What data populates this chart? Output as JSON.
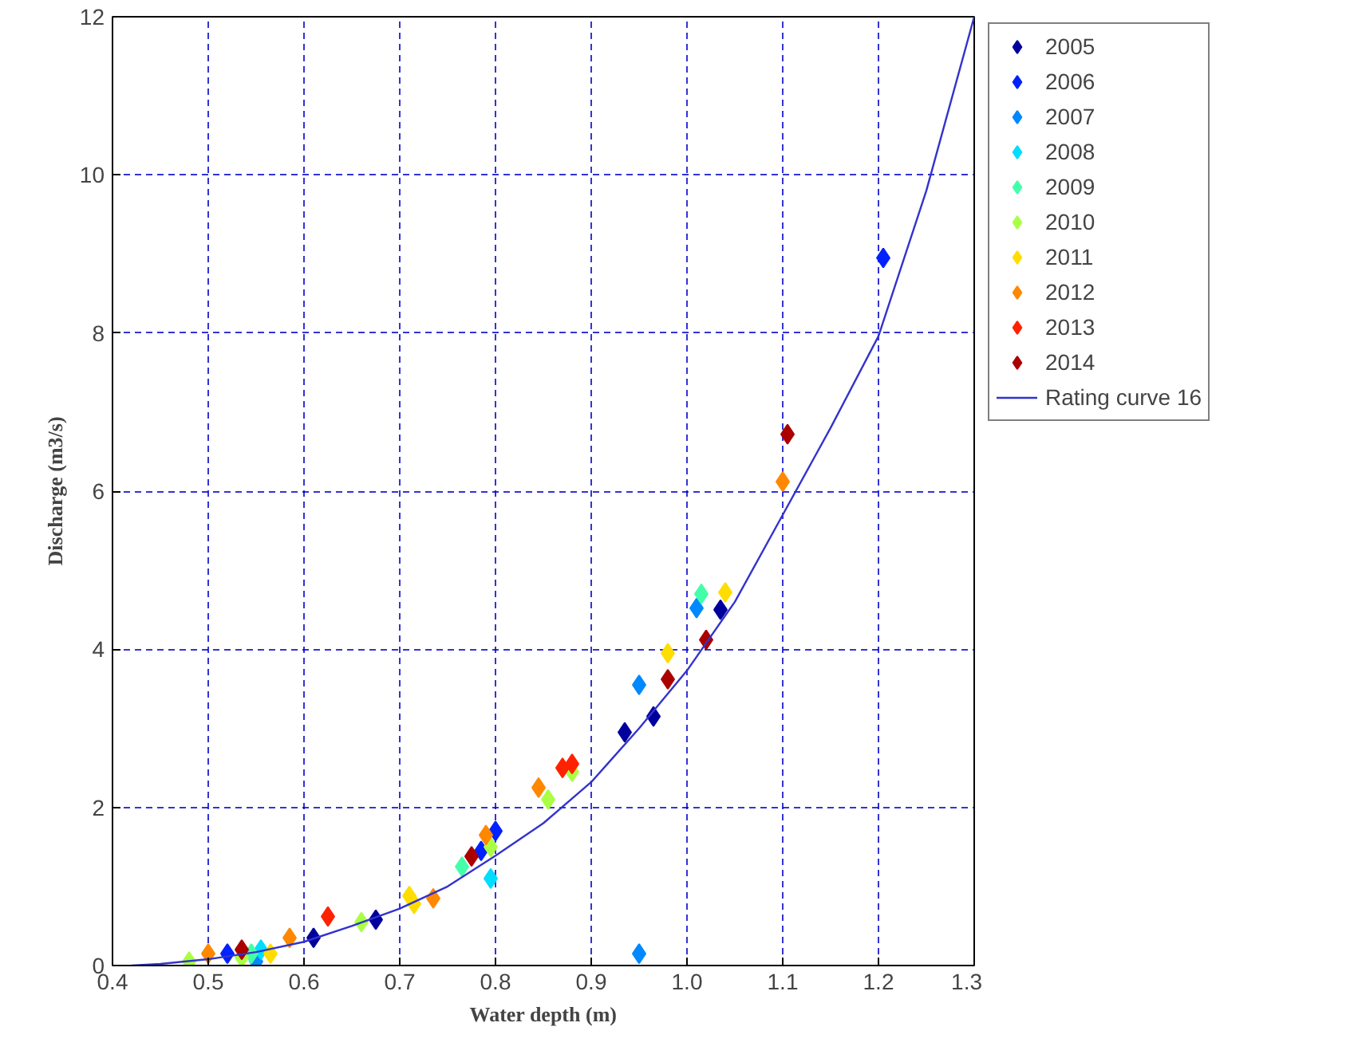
{
  "chart_data": {
    "type": "scatter",
    "xlabel": "Water depth (m)",
    "ylabel": "Discharge (m3/s)",
    "xlim": [
      0.4,
      1.3
    ],
    "ylim": [
      0,
      12
    ],
    "xticks": [
      0.4,
      0.5,
      0.6,
      0.7,
      0.8,
      0.9,
      {
        "value": 1,
        "label": "1.0"
      },
      1.1,
      1.2,
      1.3
    ],
    "yticks": [
      0,
      2,
      4,
      6,
      8,
      10,
      12
    ],
    "grid": true,
    "legend": "right",
    "marker": "diamond",
    "series": [
      {
        "name": "2005",
        "color": "#00009c",
        "x": [
          0.61,
          0.675,
          0.935,
          0.965,
          1.035
        ],
        "values": [
          0.35,
          0.58,
          2.95,
          3.15,
          4.5
        ]
      },
      {
        "name": "2006",
        "color": "#0022ff",
        "x": [
          0.52,
          0.785,
          0.8,
          1.205
        ],
        "values": [
          0.15,
          1.45,
          1.7,
          8.95
        ]
      },
      {
        "name": "2007",
        "color": "#0088ff",
        "x": [
          0.55,
          0.95,
          0.95,
          1.01
        ],
        "values": [
          0.05,
          0.15,
          3.55,
          4.52
        ]
      },
      {
        "name": "2008",
        "color": "#00ddff",
        "x": [
          0.555,
          0.795
        ],
        "values": [
          0.2,
          1.1
        ]
      },
      {
        "name": "2009",
        "color": "#44ffaa",
        "x": [
          0.545,
          0.765,
          1.015
        ],
        "values": [
          0.15,
          1.25,
          4.7
        ]
      },
      {
        "name": "2010",
        "color": "#aaff44",
        "x": [
          0.48,
          0.535,
          0.66,
          0.795,
          0.855,
          0.88
        ],
        "values": [
          0.05,
          0.1,
          0.55,
          1.5,
          2.1,
          2.45
        ]
      },
      {
        "name": "2011",
        "color": "#ffdd00",
        "x": [
          0.565,
          0.71,
          0.715,
          0.98,
          1.04
        ],
        "values": [
          0.15,
          0.88,
          0.78,
          3.95,
          4.72
        ]
      },
      {
        "name": "2012",
        "color": "#ff8800",
        "x": [
          0.5,
          0.585,
          0.735,
          0.79,
          0.845,
          1.1
        ],
        "values": [
          0.15,
          0.35,
          0.85,
          1.65,
          2.25,
          6.12
        ]
      },
      {
        "name": "2013",
        "color": "#ff2200",
        "x": [
          0.625,
          0.87,
          0.88
        ],
        "values": [
          0.62,
          2.5,
          2.55
        ]
      },
      {
        "name": "2014",
        "color": "#aa0000",
        "x": [
          0.535,
          0.775,
          0.98,
          1.02,
          1.105
        ],
        "values": [
          0.2,
          1.38,
          3.62,
          4.12,
          6.72
        ]
      },
      {
        "name": "Rating curve 16",
        "type": "line",
        "color": "#3333cc",
        "marker": "none",
        "line_style": "solid",
        "x": [
          0.42,
          0.45,
          0.5,
          0.55,
          0.6,
          0.65,
          0.7,
          0.75,
          0.8,
          0.85,
          0.9,
          0.95,
          1.0,
          1.05,
          1.1,
          1.15,
          1.2,
          1.25,
          1.3
        ],
        "values": [
          0,
          0.02,
          0.08,
          0.17,
          0.3,
          0.5,
          0.72,
          1.0,
          1.39,
          1.8,
          2.32,
          3.0,
          3.73,
          4.6,
          5.7,
          6.8,
          7.96,
          9.8,
          12
        ]
      }
    ]
  }
}
